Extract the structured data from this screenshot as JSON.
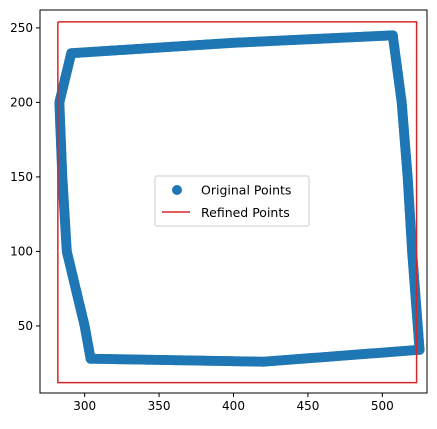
{
  "chart_data": {
    "type": "scatter",
    "xlim": [
      270,
      530
    ],
    "ylim": [
      5,
      262
    ],
    "xticks": [
      300,
      350,
      400,
      450,
      500
    ],
    "yticks": [
      50,
      100,
      150,
      200,
      250
    ],
    "grid": false,
    "legend_placement": "center",
    "series": [
      {
        "name": "Original Points",
        "kind": "scatter",
        "color": "#1f77b4",
        "corners": [
          [
            291,
            233
          ],
          [
            507,
            245
          ],
          [
            525,
            34
          ],
          [
            304,
            28
          ]
        ],
        "left_edge": [
          [
            291,
            233
          ],
          [
            283,
            200
          ],
          [
            285,
            150
          ],
          [
            288,
            100
          ],
          [
            300,
            50
          ],
          [
            304,
            28
          ]
        ],
        "right_edge": [
          [
            507,
            245
          ],
          [
            513,
            200
          ],
          [
            517,
            150
          ],
          [
            520,
            100
          ],
          [
            525,
            34
          ]
        ],
        "top_edge": [
          [
            291,
            233
          ],
          [
            400,
            240
          ],
          [
            507,
            245
          ]
        ],
        "bottom_edge": [
          [
            304,
            28
          ],
          [
            420,
            26
          ],
          [
            525,
            34
          ]
        ]
      },
      {
        "name": "Refined Points",
        "kind": "line",
        "color": "#d62728",
        "x": [
          282,
          523,
          523,
          282,
          282
        ],
        "y": [
          254,
          254,
          12,
          12,
          254
        ]
      }
    ]
  }
}
